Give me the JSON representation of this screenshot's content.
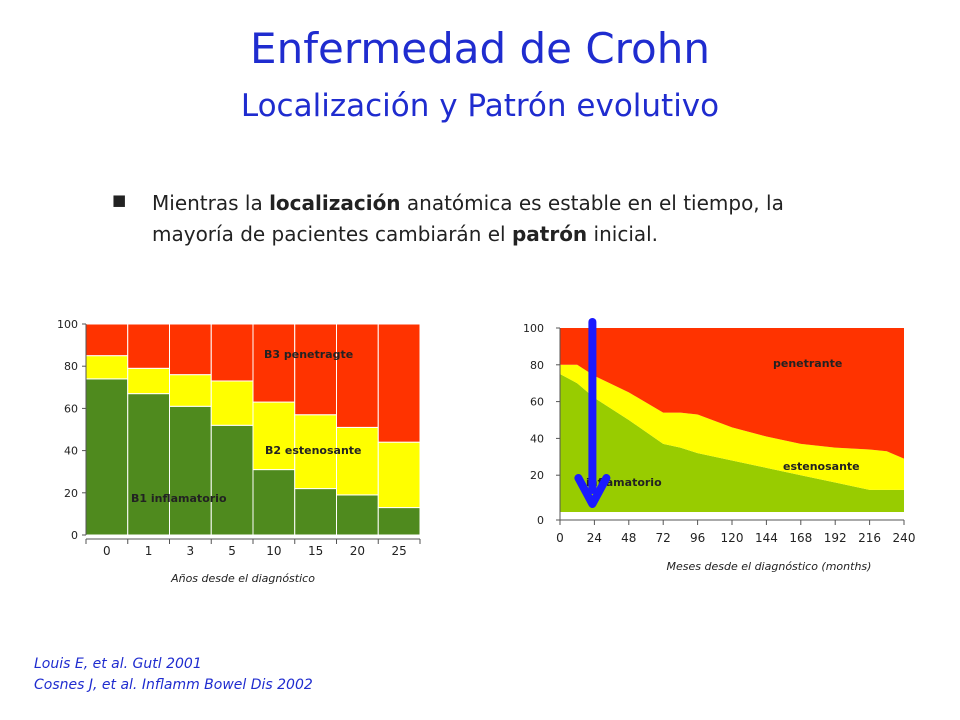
{
  "slide": {
    "title": "Enfermedad de Crohn",
    "subtitle": "Localización y Patrón evolutivo",
    "bullet": {
      "part1": "Mientras la ",
      "bold1": "localización",
      "part2": " anatómica es estable en el tiempo, la mayoría de pacientes cambiarán el ",
      "bold2": "patrón",
      "part3": " inicial."
    },
    "references": [
      "Louis E, et al. Gutl 2001",
      "Cosnes J, et al. Inflamm Bowel Dis 2002"
    ]
  },
  "colors": {
    "title": "#1f2ccf",
    "inflamatorio_left": "#4f8a1e",
    "inflamatorio_right": "#98cc00",
    "estenosante": "#ffff00",
    "penetrante": "#ff3300",
    "arrow": "#1a1aff"
  },
  "chart_data": [
    {
      "type": "bar",
      "stacked": true,
      "xlabel": "Años desde el diagnóstico",
      "ylabel": "",
      "ylim": [
        0,
        100
      ],
      "yticks": [
        0,
        20,
        40,
        60,
        80,
        100
      ],
      "categories": [
        "0",
        "1",
        "3",
        "5",
        "10",
        "15",
        "20",
        "25"
      ],
      "series": [
        {
          "name": "B1 inflamatorio",
          "color": "#4f8a1e",
          "values": [
            74,
            67,
            61,
            52,
            31,
            22,
            19,
            13
          ]
        },
        {
          "name": "B2 estenosante",
          "color": "#ffff00",
          "values": [
            11,
            12,
            15,
            21,
            32,
            35,
            32,
            31
          ]
        },
        {
          "name": "B3 penetragte",
          "color": "#ff3300",
          "values": [
            15,
            21,
            24,
            27,
            37,
            43,
            49,
            56
          ]
        }
      ]
    },
    {
      "type": "area",
      "stacked": true,
      "xlabel": "Meses desde el diagnóstico (months)",
      "ylabel": "",
      "ylim": [
        0,
        100
      ],
      "xlim": [
        0,
        240
      ],
      "yticks": [
        0,
        20,
        40,
        60,
        80,
        100
      ],
      "xticks": [
        0,
        24,
        48,
        72,
        96,
        120,
        144,
        168,
        192,
        216,
        240
      ],
      "x": [
        0,
        12,
        24,
        48,
        72,
        84,
        96,
        120,
        144,
        168,
        192,
        216,
        228,
        240
      ],
      "series": [
        {
          "name": "inflamatorio",
          "color": "#98cc00",
          "values": [
            75,
            70,
            62,
            50,
            37,
            35,
            32,
            28,
            24,
            20,
            16,
            12,
            12,
            12
          ]
        },
        {
          "name": "estenosante",
          "color": "#ffff00",
          "values": [
            5,
            10,
            12,
            15,
            17,
            19,
            21,
            18,
            17,
            17,
            19,
            22,
            21,
            17
          ]
        },
        {
          "name": "penetrante",
          "color": "#ff3300",
          "values": [
            20,
            20,
            26,
            35,
            46,
            46,
            47,
            54,
            59,
            63,
            65,
            66,
            67,
            71
          ]
        }
      ],
      "annotation": "downward arrow at 24 months"
    }
  ]
}
